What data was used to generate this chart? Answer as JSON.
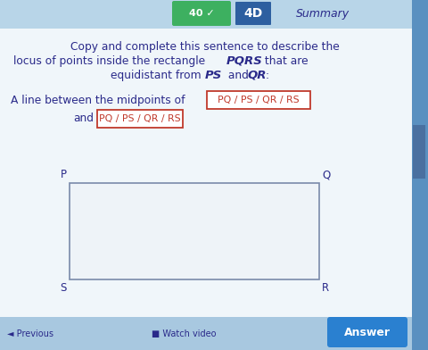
{
  "bg_color": "#cde4f0",
  "tab_4d_color": "#2d5fa0",
  "tab_4d_text": "4D",
  "tab_summary_text": "Summary",
  "title_line1": "Copy and complete this sentence to describe the",
  "title_line2": "locus of points inside the rectangle ",
  "title_pqrs": "PQRS",
  "title_line3": " that are",
  "title_equi": "equidistant from ",
  "title_ps": "PS",
  "title_and": " and ",
  "title_qr": "QR",
  "title_colon": ":",
  "sentence_prefix": "A line between the midpoints of",
  "box1_options": "PQ / PS / QR / RS",
  "sentence_and": "and",
  "box2_options": "PQ / PS / QR / RS",
  "rect_label_P": "P",
  "rect_label_Q": "Q",
  "rect_label_S": "S",
  "rect_label_R": "R",
  "text_color": "#2a2a8a",
  "box_border_color": "#c0392b",
  "box_bg_color": "#ffffff",
  "rect_color": "#7a8aaa",
  "rect_fill": "#eef3f8",
  "header_green_color": "#3db060",
  "answer_btn_color": "#2a80d0",
  "answer_btn_text": "Answer",
  "bottom_bar_color": "#a8c8e0",
  "right_bar_color": "#5a90c0",
  "top_bar_color": "#5a90c0"
}
